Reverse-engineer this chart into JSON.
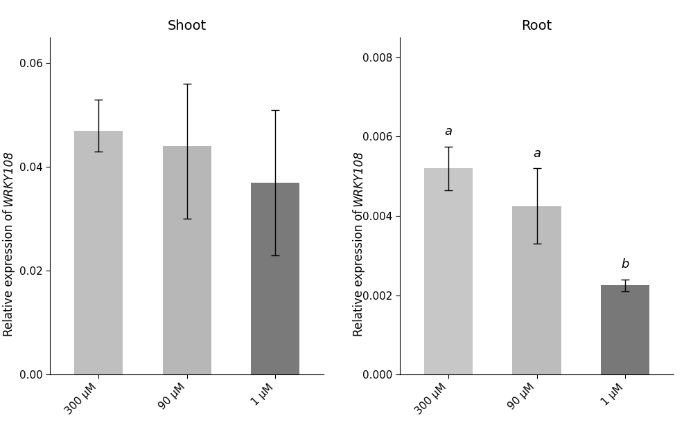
{
  "shoot": {
    "title": "Shoot",
    "categories": [
      "300 μM",
      "90 μM",
      "1 μM"
    ],
    "values": [
      0.047,
      0.044,
      0.037
    ],
    "errors_up": [
      0.006,
      0.012,
      0.014
    ],
    "errors_down": [
      0.004,
      0.014,
      0.014
    ],
    "colors": [
      "#c0bfbf",
      "#b8b7b7",
      "#7a7a7a"
    ],
    "ylim": [
      0,
      0.065
    ],
    "yticks": [
      0.0,
      0.02,
      0.04,
      0.06
    ],
    "ytick_labels": [
      "0.00",
      "0.02",
      "0.04",
      "0.06"
    ],
    "significance": [
      "",
      "",
      ""
    ]
  },
  "root": {
    "title": "Root",
    "categories": [
      "300 μM",
      "90 μM",
      "1 μM"
    ],
    "values": [
      0.0052,
      0.00425,
      0.00225
    ],
    "errors_up": [
      0.00055,
      0.00095,
      0.00015
    ],
    "errors_down": [
      0.00055,
      0.00095,
      0.00015
    ],
    "colors": [
      "#c8c7c7",
      "#bcbcbc",
      "#787878"
    ],
    "ylim": [
      0,
      0.0085
    ],
    "yticks": [
      0.0,
      0.002,
      0.004,
      0.006,
      0.008
    ],
    "ytick_labels": [
      "0.000",
      "0.002",
      "0.004",
      "0.006",
      "0.008"
    ],
    "significance": [
      "a",
      "a",
      "b"
    ]
  },
  "background_color": "#ffffff",
  "bar_width": 0.55,
  "fontsize_title": 14,
  "fontsize_tick": 11,
  "fontsize_ylabel": 12,
  "fontsize_sig": 13,
  "ylabel_normal": "Relative expression of ",
  "ylabel_italic": "WRKY108"
}
